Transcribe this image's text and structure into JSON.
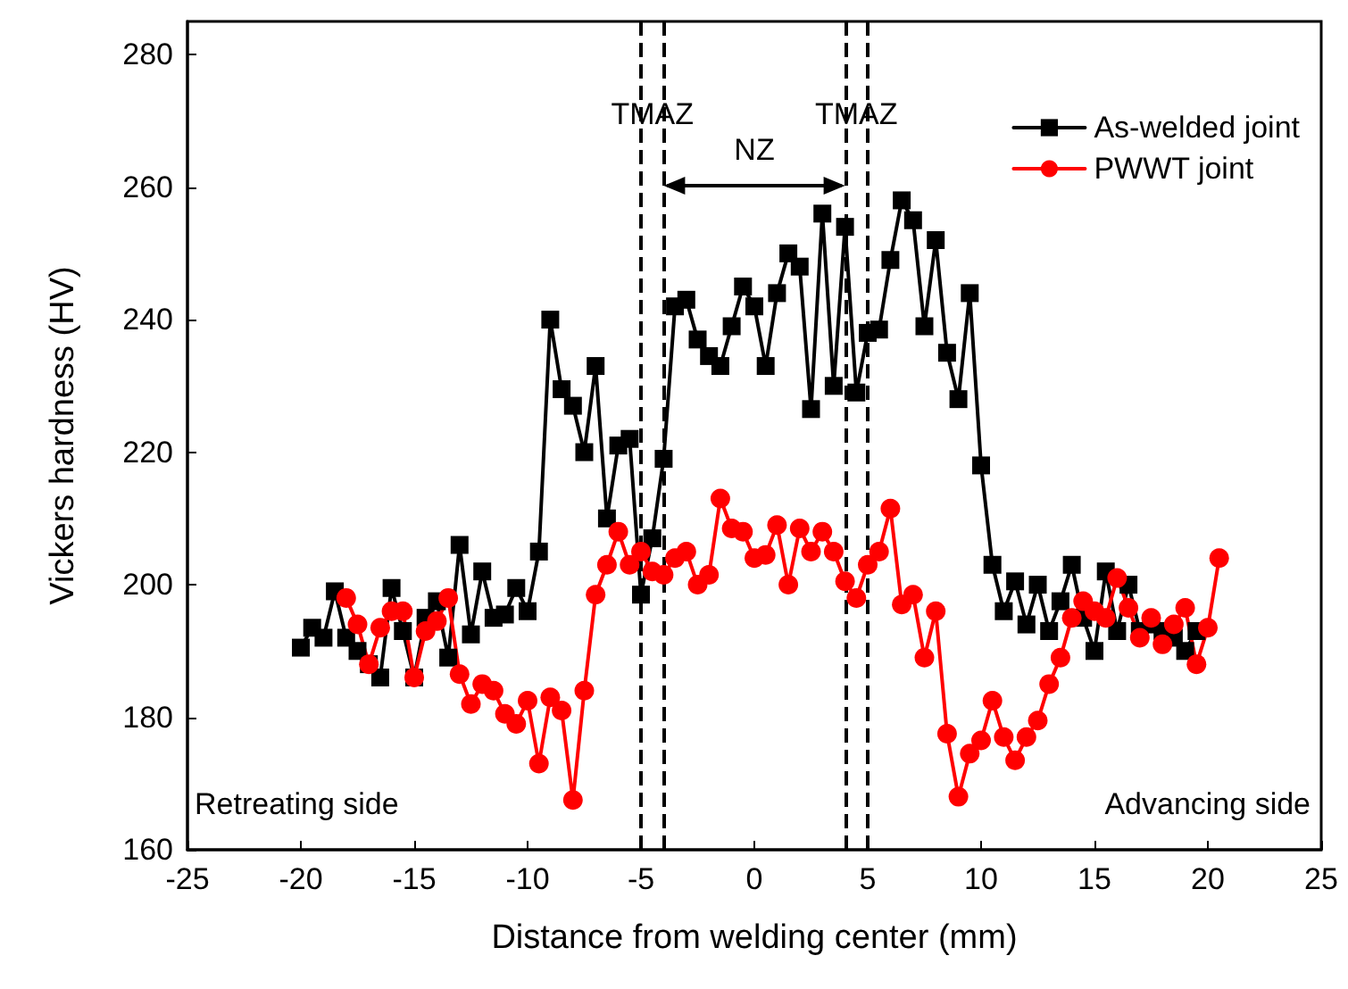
{
  "chart_data": {
    "type": "line",
    "xlabel": "Distance from welding center (mm)",
    "ylabel": "Vickers hardness (HV)",
    "xlim": [
      -25,
      25
    ],
    "xticks": [
      -25,
      -20,
      -15,
      -10,
      -5,
      0,
      5,
      10,
      15,
      20,
      25
    ],
    "ylim": [
      160,
      285
    ],
    "yticks": [
      160,
      180,
      200,
      220,
      240,
      260,
      280
    ],
    "grid": false,
    "legend": "top right",
    "line_style": "solid",
    "series": [
      {
        "name": "As-welded joint",
        "color": "#000000",
        "marker": "square",
        "x": [
          -20,
          -19.5,
          -19,
          -18.5,
          -18,
          -17.5,
          -17,
          -16.5,
          -16,
          -15.5,
          -15,
          -14.5,
          -14,
          -13.5,
          -13,
          -12.5,
          -12,
          -11.5,
          -11,
          -10.5,
          -10,
          -9.5,
          -9,
          -8.5,
          -8,
          -7.5,
          -7,
          -6.5,
          -6,
          -5.5,
          -5,
          -4.5,
          -4,
          -3.5,
          -3,
          -2.5,
          -2,
          -1.5,
          -1,
          -0.5,
          0,
          0.5,
          1,
          1.5,
          2,
          2.5,
          3,
          3.5,
          4,
          4.5,
          5,
          5.5,
          6,
          6.5,
          7,
          7.5,
          8,
          8.5,
          9,
          9.5,
          10,
          10.5,
          11,
          11.5,
          12,
          12.5,
          13,
          13.5,
          14,
          14.5,
          15,
          15.5,
          16,
          16.5,
          17,
          17.5,
          18,
          18.5,
          19,
          19.5
        ],
        "values": [
          190.5,
          193.5,
          192,
          199,
          192,
          190,
          188,
          186,
          199.5,
          193,
          186,
          195,
          197.5,
          189,
          206,
          192.5,
          202,
          195,
          195.5,
          199.5,
          196,
          205,
          240,
          229.5,
          227,
          220,
          233,
          210,
          221,
          222,
          198.5,
          207,
          219,
          242,
          243,
          237,
          234.5,
          233,
          239,
          245,
          242,
          233,
          244,
          250,
          248,
          226.5,
          256,
          230,
          254,
          229,
          238,
          238.5,
          249,
          258,
          255,
          239,
          252,
          235,
          228,
          244,
          218,
          203,
          196,
          200.5,
          194,
          200,
          193,
          197.5,
          203,
          195,
          190,
          202,
          193,
          200,
          193,
          194,
          193,
          192,
          190,
          193
        ]
      },
      {
        "name": "PWWT joint",
        "color": "#ff0000",
        "marker": "circle",
        "x": [
          -18,
          -17.5,
          -17,
          -16.5,
          -16,
          -15.5,
          -15,
          -14.5,
          -14,
          -13.5,
          -13,
          -12.5,
          -12,
          -11.5,
          -11,
          -10.5,
          -10,
          -9.5,
          -9,
          -8.5,
          -8,
          -7.5,
          -7,
          -6.5,
          -6,
          -5.5,
          -5,
          -4.5,
          -4,
          -3.5,
          -3,
          -2.5,
          -2,
          -1.5,
          -1,
          -0.5,
          0,
          0.5,
          1,
          1.5,
          2,
          2.5,
          3,
          3.5,
          4,
          4.5,
          5,
          5.5,
          6,
          6.5,
          7,
          7.5,
          8,
          8.5,
          9,
          9.5,
          10,
          10.5,
          11,
          11.5,
          12,
          12.5,
          13,
          13.5,
          14,
          14.5,
          15,
          15.5,
          16,
          16.5,
          17,
          17.5,
          18,
          18.5,
          19,
          19.5,
          20,
          20.5
        ],
        "values": [
          198,
          194,
          188,
          193.5,
          196,
          196,
          186,
          193,
          194.5,
          198,
          186.5,
          182,
          185,
          184,
          180.5,
          179,
          182.5,
          173,
          183,
          181,
          167.5,
          184,
          198.5,
          203,
          208,
          203,
          205,
          202,
          201.5,
          204,
          205,
          200,
          201.5,
          213,
          208.5,
          208,
          204,
          204.5,
          209,
          200,
          208.5,
          205,
          208,
          205,
          200.5,
          198,
          203,
          205,
          211.5,
          197,
          198.5,
          189,
          196,
          177.5,
          168,
          174.5,
          176.5,
          182.5,
          177,
          173.5,
          177,
          179.5,
          185,
          189,
          195,
          197.5,
          196,
          195,
          201,
          196.5,
          192,
          195,
          191,
          194,
          196.5,
          188,
          193.5,
          204
        ]
      }
    ],
    "ref_lines": [
      {
        "axis": "x",
        "value": -5,
        "line_style": "dashed",
        "color": "#000000"
      },
      {
        "axis": "x",
        "value": -4,
        "line_style": "dashed",
        "color": "#000000"
      },
      {
        "axis": "x",
        "value": 4,
        "line_style": "dashed",
        "color": "#000000"
      },
      {
        "axis": "x",
        "value": 5,
        "line_style": "dashed",
        "color": "#000000"
      }
    ],
    "annotations": [
      "TMAZ",
      "NZ",
      "TMAZ",
      "Retreating side",
      "Advancing side"
    ]
  }
}
